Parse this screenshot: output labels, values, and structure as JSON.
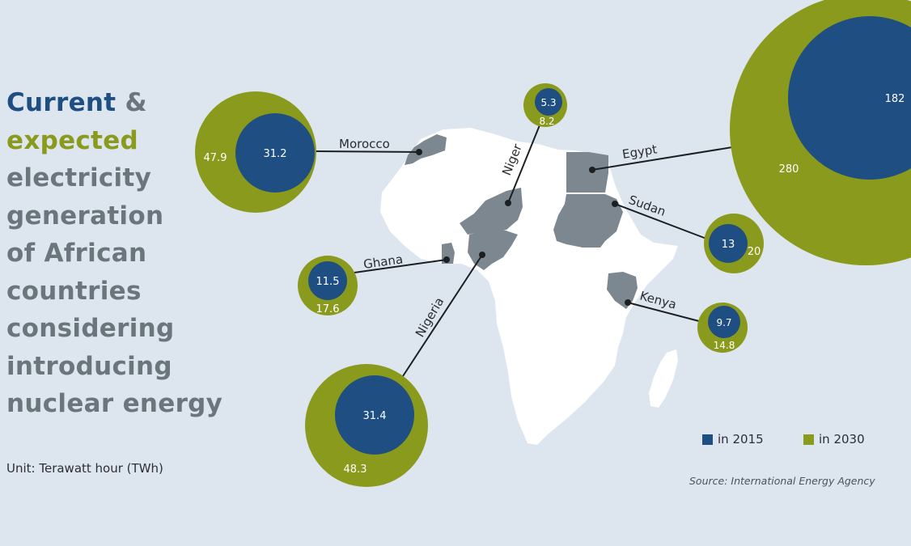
{
  "title": {
    "word_current": "Current",
    "amp": " &",
    "word_expected": "expected",
    "rest": [
      "electricity",
      "generation",
      "of African",
      "countries",
      "considering",
      "introducing",
      "nuclear energy"
    ]
  },
  "unit_label": "Unit: Terawatt hour (TWh)",
  "source_label": "Source: International Energy Agency",
  "legend": {
    "items": [
      {
        "label": "in 2015",
        "color": "#1f4e82"
      },
      {
        "label": "in 2030",
        "color": "#8a9a1c"
      }
    ]
  },
  "colors": {
    "background": "#dde5ee",
    "africa_land": "#ffffff",
    "highlighted_country": "#7c8790",
    "title_current": "#1f4e82",
    "title_expected": "#8a9a1c",
    "title_rest": "#6b757c"
  },
  "map_data": {
    "unit": "TWh",
    "countries": [
      {
        "name": "Morocco",
        "in_2015": "31.2",
        "in_2030": "47.9"
      },
      {
        "name": "Niger",
        "in_2015": "5.3",
        "in_2030": "8.2"
      },
      {
        "name": "Egypt",
        "in_2015": "182",
        "in_2030": "280"
      },
      {
        "name": "Sudan",
        "in_2015": "13",
        "in_2030": "20"
      },
      {
        "name": "Ghana",
        "in_2015": "11.5",
        "in_2030": "17.6"
      },
      {
        "name": "Kenya",
        "in_2015": "9.7",
        "in_2030": "14.8"
      },
      {
        "name": "Nigeria",
        "in_2015": "31.4",
        "in_2030": "48.3"
      }
    ]
  }
}
